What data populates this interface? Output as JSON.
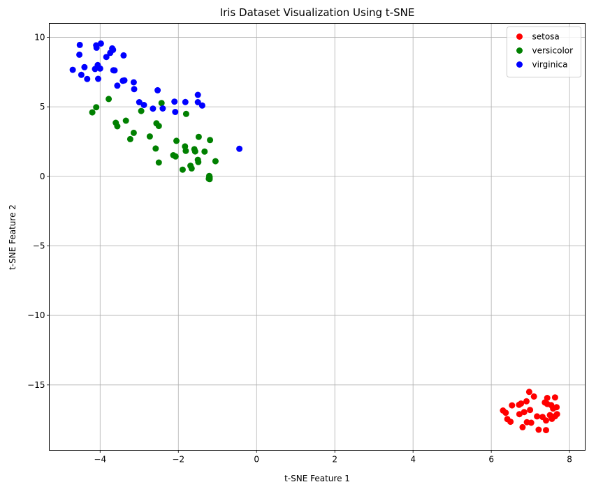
{
  "chart_data": {
    "type": "scatter",
    "title": "Iris Dataset Visualization Using t-SNE",
    "xlabel": "t-SNE Feature 1",
    "ylabel": "t-SNE Feature 2",
    "xlim": [
      -5.3,
      8.4
    ],
    "ylim": [
      -19.7,
      11.0
    ],
    "xticks": [
      -4,
      -2,
      0,
      2,
      4,
      6,
      8
    ],
    "xtick_labels": [
      "−4",
      "−2",
      "0",
      "2",
      "4",
      "6",
      "8"
    ],
    "yticks": [
      10,
      5,
      0,
      -5,
      -10,
      -15
    ],
    "ytick_labels": [
      "10",
      "5",
      "0",
      "−5",
      "−10",
      "−15"
    ],
    "grid": true,
    "legend_position": "top-right",
    "series": [
      {
        "name": "setosa",
        "color": "#ff0000",
        "points": [
          [
            6.97,
            -15.5
          ],
          [
            7.09,
            -15.83
          ],
          [
            7.43,
            -15.94
          ],
          [
            7.63,
            -15.9
          ],
          [
            6.53,
            -16.47
          ],
          [
            6.71,
            -16.43
          ],
          [
            6.76,
            -16.34
          ],
          [
            6.9,
            -16.18
          ],
          [
            7.37,
            -16.26
          ],
          [
            7.43,
            -16.37
          ],
          [
            7.53,
            -16.45
          ],
          [
            7.67,
            -16.6
          ],
          [
            7.58,
            -16.7
          ],
          [
            6.3,
            -16.84
          ],
          [
            6.37,
            -17.0
          ],
          [
            6.84,
            -16.95
          ],
          [
            6.99,
            -16.8
          ],
          [
            6.72,
            -17.1
          ],
          [
            7.17,
            -17.26
          ],
          [
            7.31,
            -17.3
          ],
          [
            7.5,
            -17.17
          ],
          [
            7.63,
            -17.25
          ],
          [
            7.68,
            -17.1
          ],
          [
            6.41,
            -17.46
          ],
          [
            6.49,
            -17.65
          ],
          [
            7.55,
            -17.44
          ],
          [
            7.4,
            -17.56
          ],
          [
            6.91,
            -17.68
          ],
          [
            7.02,
            -17.72
          ],
          [
            6.8,
            -18.04
          ],
          [
            7.21,
            -18.22
          ],
          [
            7.4,
            -18.25
          ]
        ]
      },
      {
        "name": "versicolor",
        "color": "#008000",
        "points": [
          [
            -3.78,
            5.56
          ],
          [
            -4.2,
            4.6
          ],
          [
            -4.1,
            4.97
          ],
          [
            -2.95,
            4.7
          ],
          [
            -2.43,
            5.27
          ],
          [
            -1.8,
            4.49
          ],
          [
            -3.6,
            3.85
          ],
          [
            -3.56,
            3.6
          ],
          [
            -3.34,
            4.0
          ],
          [
            -2.56,
            3.81
          ],
          [
            -2.5,
            3.62
          ],
          [
            -1.48,
            2.84
          ],
          [
            -1.19,
            2.61
          ],
          [
            -3.14,
            3.13
          ],
          [
            -3.23,
            2.68
          ],
          [
            -2.73,
            2.87
          ],
          [
            -2.05,
            2.55
          ],
          [
            -1.83,
            2.15
          ],
          [
            -1.81,
            1.83
          ],
          [
            -1.59,
            1.95
          ],
          [
            -1.57,
            1.79
          ],
          [
            -1.33,
            1.78
          ],
          [
            -2.58,
            2.0
          ],
          [
            -2.13,
            1.52
          ],
          [
            -2.07,
            1.43
          ],
          [
            -1.5,
            1.19
          ],
          [
            -1.49,
            1.03
          ],
          [
            -1.05,
            1.09
          ],
          [
            -2.5,
            0.99
          ],
          [
            -1.69,
            0.76
          ],
          [
            -1.66,
            0.57
          ],
          [
            -1.89,
            0.48
          ],
          [
            -1.21,
            0.03
          ],
          [
            -1.2,
            -0.05
          ],
          [
            -1.22,
            -0.17
          ],
          [
            -1.2,
            -0.2
          ]
        ]
      },
      {
        "name": "virginica",
        "color": "#0000ff",
        "points": [
          [
            -3.98,
            9.55
          ],
          [
            -4.52,
            9.45
          ],
          [
            -4.1,
            9.42
          ],
          [
            -4.09,
            9.25
          ],
          [
            -3.69,
            9.2
          ],
          [
            -3.67,
            9.1
          ],
          [
            -3.74,
            8.88
          ],
          [
            -4.53,
            8.75
          ],
          [
            -3.84,
            8.58
          ],
          [
            -3.4,
            8.7
          ],
          [
            -4.4,
            7.85
          ],
          [
            -4.06,
            8.0
          ],
          [
            -4.0,
            7.75
          ],
          [
            -4.13,
            7.72
          ],
          [
            -4.7,
            7.66
          ],
          [
            -3.66,
            7.63
          ],
          [
            -3.63,
            7.62
          ],
          [
            -4.48,
            7.3
          ],
          [
            -4.33,
            7.0
          ],
          [
            -4.05,
            7.01
          ],
          [
            -3.42,
            6.87
          ],
          [
            -3.38,
            6.9
          ],
          [
            -3.14,
            6.76
          ],
          [
            -3.56,
            6.52
          ],
          [
            -3.13,
            6.27
          ],
          [
            -2.53,
            6.19
          ],
          [
            -3.0,
            5.33
          ],
          [
            -2.88,
            5.13
          ],
          [
            -2.1,
            5.37
          ],
          [
            -1.82,
            5.34
          ],
          [
            -1.5,
            5.86
          ],
          [
            -1.5,
            5.33
          ],
          [
            -1.39,
            5.09
          ],
          [
            -2.65,
            4.87
          ],
          [
            -2.4,
            4.88
          ],
          [
            -2.08,
            4.63
          ],
          [
            -0.44,
            1.98
          ]
        ]
      }
    ]
  }
}
